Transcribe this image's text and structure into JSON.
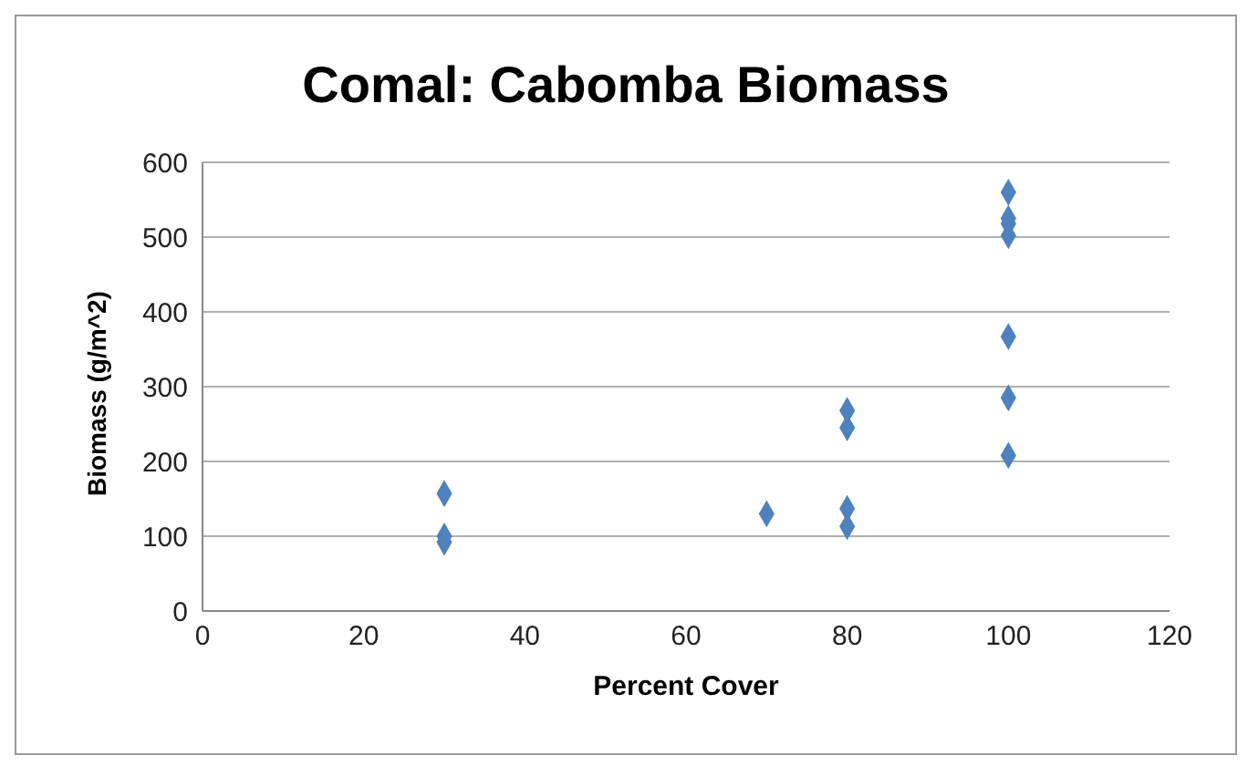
{
  "chart_data": {
    "type": "scatter",
    "title": "Comal: Cabomba Biomass",
    "xlabel": "Percent Cover",
    "ylabel": "Biomass (g/m^2)",
    "x": [
      30,
      30,
      30,
      70,
      80,
      80,
      80,
      80,
      100,
      100,
      100,
      100,
      100,
      100,
      100
    ],
    "values": [
      157,
      100,
      92,
      130,
      268,
      245,
      137,
      113,
      560,
      525,
      518,
      502,
      367,
      285,
      208
    ],
    "color": "#4f81bd",
    "marker": "diamond",
    "xlim": [
      0,
      120
    ],
    "xticks": [
      0,
      20,
      40,
      60,
      80,
      100,
      120
    ],
    "ylim": [
      0,
      600
    ],
    "yticks": [
      0,
      100,
      200,
      300,
      400,
      500,
      600
    ],
    "grid": "y",
    "legend": false
  }
}
